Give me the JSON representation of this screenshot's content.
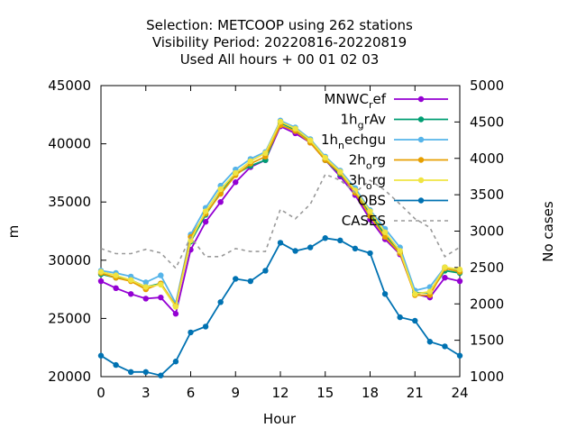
{
  "chart_data": {
    "type": "line",
    "title_lines": [
      "Selection: METCOOP using   262 stations",
      "Visibility   Period: 20220816-20220819",
      "Used  All hours  + 00 01 02 03"
    ],
    "xlabel": "Hour",
    "ylabel": "m",
    "y2label": "No cases",
    "xlim": [
      0,
      24
    ],
    "ylim": [
      20000,
      45000
    ],
    "y2lim": [
      1000,
      5000
    ],
    "x_ticks": [
      0,
      3,
      6,
      9,
      12,
      15,
      18,
      21,
      24
    ],
    "y_ticks": [
      20000,
      25000,
      30000,
      35000,
      40000,
      45000
    ],
    "y2_ticks": [
      1000,
      1500,
      2000,
      2500,
      3000,
      3500,
      4000,
      4500,
      5000
    ],
    "legend_position": "top-right",
    "series": [
      {
        "name": "MNWC_ref",
        "label_main": "MNWC",
        "label_sub": "r",
        "label_tail": "ef",
        "color": "#9400d3",
        "marker": "circle",
        "x": [
          0,
          1,
          2,
          3,
          4,
          5,
          6,
          7,
          8,
          9,
          10,
          11,
          12,
          13,
          14,
          15,
          16,
          17,
          18,
          19,
          20,
          21,
          22,
          23,
          24
        ],
        "values": [
          28200,
          27600,
          27100,
          26700,
          26800,
          25400,
          30900,
          33300,
          35000,
          36700,
          38000,
          38600,
          41500,
          40900,
          40100,
          38600,
          37200,
          35600,
          33500,
          31800,
          30500,
          27100,
          26800,
          28500,
          28200
        ]
      },
      {
        "name": "1h_grAv",
        "label_main": "1h",
        "label_sub": "g",
        "label_tail": "rAv",
        "color": "#009e73",
        "marker": "circle",
        "x": [
          0,
          1,
          2,
          3,
          4,
          5,
          6,
          7,
          8,
          9,
          10,
          11,
          12,
          13,
          14,
          15,
          16,
          17,
          18,
          19,
          20,
          21,
          22,
          23,
          24
        ],
        "values": [
          28800,
          28500,
          28300,
          27700,
          28000,
          26100,
          31600,
          33900,
          35800,
          37400,
          38100,
          38600,
          41800,
          41200,
          40200,
          38600,
          37400,
          35900,
          34000,
          32200,
          30700,
          27200,
          27200,
          29100,
          28900
        ]
      },
      {
        "name": "1h_nechgu",
        "label_main": "1h",
        "label_sub": "n",
        "label_tail": "echgu",
        "color": "#56b4e9",
        "marker": "circle",
        "x": [
          0,
          1,
          2,
          3,
          4,
          5,
          6,
          7,
          8,
          9,
          10,
          11,
          12,
          13,
          14,
          15,
          16,
          17,
          18,
          19,
          20,
          21,
          22,
          23,
          24
        ],
        "values": [
          29100,
          28900,
          28600,
          28100,
          28700,
          26300,
          32200,
          34500,
          36400,
          37800,
          38700,
          39300,
          42000,
          41400,
          40400,
          38900,
          37700,
          36200,
          34300,
          32700,
          31100,
          27400,
          27700,
          29400,
          29100
        ]
      },
      {
        "name": "2h_org",
        "label_main": "2h",
        "label_sub": "o",
        "label_tail": "rg",
        "color": "#e69f00",
        "marker": "circle",
        "x": [
          0,
          1,
          2,
          3,
          4,
          5,
          6,
          7,
          8,
          9,
          10,
          11,
          12,
          13,
          14,
          15,
          16,
          17,
          18,
          19,
          20,
          21,
          22,
          23,
          24
        ],
        "values": [
          28900,
          28500,
          28200,
          27500,
          28000,
          26100,
          32000,
          34000,
          35700,
          37300,
          38300,
          38900,
          41600,
          41100,
          40100,
          38600,
          37500,
          35800,
          33800,
          32000,
          30600,
          27000,
          27000,
          29300,
          29000
        ]
      },
      {
        "name": "3h_org",
        "label_main": "3h",
        "label_sub": "o",
        "label_tail": "rg",
        "color": "#f0e442",
        "marker": "circle",
        "x": [
          0,
          1,
          2,
          3,
          4,
          5,
          6,
          7,
          8,
          9,
          10,
          11,
          12,
          13,
          14,
          15,
          16,
          17,
          18,
          19,
          20,
          21,
          22,
          23,
          24
        ],
        "values": [
          29000,
          28700,
          28300,
          27700,
          27900,
          26000,
          31700,
          34200,
          36100,
          37500,
          38500,
          39200,
          41900,
          41300,
          40300,
          38800,
          37600,
          36000,
          34200,
          32400,
          30800,
          27100,
          27300,
          29400,
          29200
        ]
      },
      {
        "name": "OBS",
        "label_main": "OBS",
        "label_sub": "",
        "label_tail": "",
        "color": "#0072b2",
        "marker": "circle",
        "x": [
          0,
          1,
          2,
          3,
          4,
          5,
          6,
          7,
          8,
          9,
          10,
          11,
          12,
          13,
          14,
          15,
          16,
          17,
          18,
          19,
          20,
          21,
          22,
          23,
          24
        ],
        "values": [
          21800,
          21000,
          20400,
          20400,
          20100,
          21300,
          23800,
          24300,
          26400,
          28400,
          28200,
          29100,
          31500,
          30800,
          31100,
          31900,
          31700,
          31000,
          30600,
          27100,
          25100,
          24800,
          23000,
          22600,
          21800
        ]
      },
      {
        "name": "CASES",
        "label_main": "CASES",
        "label_sub": "",
        "label_tail": "",
        "color": "#999999",
        "dashed": true,
        "axis": "y2",
        "x": [
          0,
          1,
          2,
          3,
          4,
          5,
          6,
          7,
          8,
          9,
          10,
          11,
          12,
          13,
          14,
          15,
          16,
          17,
          18,
          19,
          20,
          21,
          22,
          23,
          24
        ],
        "values": [
          2760,
          2690,
          2690,
          2750,
          2700,
          2490,
          2920,
          2650,
          2650,
          2760,
          2720,
          2720,
          3300,
          3170,
          3370,
          3780,
          3700,
          3530,
          3700,
          3560,
          3370,
          3170,
          3050,
          2650,
          2780
        ]
      }
    ]
  }
}
